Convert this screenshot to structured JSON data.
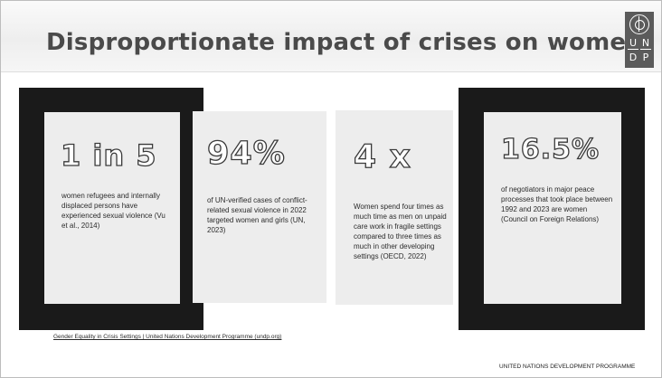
{
  "slide": {
    "title": "Disproportionate impact of crises on women",
    "logo": {
      "icon": "un-emblem-icon",
      "letters": [
        "U",
        "N",
        "D",
        "P"
      ]
    },
    "stats": [
      {
        "value": "1 in 5",
        "description": "women refugees and internally displaced persons have experienced sexual violence (Vu et al., 2014)"
      },
      {
        "value": "94%",
        "description": "of UN-verified cases of conflict-related sexual violence in 2022 targeted women and girls (UN, 2023)"
      },
      {
        "value": "4 x",
        "description": "Women spend four times as much time as men on unpaid care work in fragile settings compared to three times as much in other developing settings (OECD, 2022)"
      },
      {
        "value": "16.5%",
        "description": "of negotiators in major peace processes that took place between 1992 and 2023 are women (Council on Foreign Relations)"
      }
    ],
    "source_link": "Gender Equality in Crisis Settings | United Nations Development Programme (undp.org)",
    "footer": "UNITED NATIONS DEVELOPMENT PROGRAMME"
  },
  "colors": {
    "title": "#4a4a4a",
    "frame": "#1a1a1a",
    "card": "#ededed",
    "logo_bg": "#5b5b5b"
  }
}
